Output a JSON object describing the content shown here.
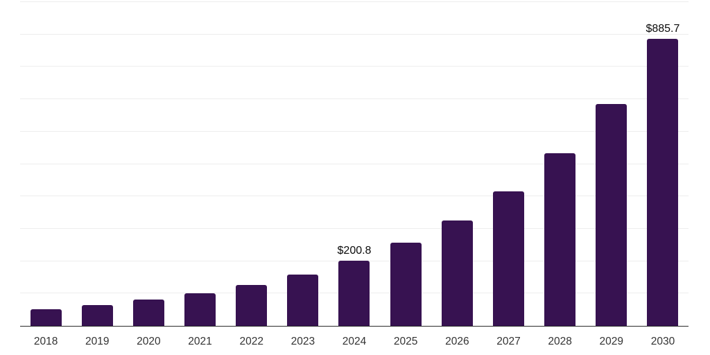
{
  "chart_data": {
    "type": "bar",
    "title": "",
    "xlabel": "",
    "ylabel": "",
    "categories": [
      "2018",
      "2019",
      "2020",
      "2021",
      "2022",
      "2023",
      "2024",
      "2025",
      "2026",
      "2027",
      "2028",
      "2029",
      "2030"
    ],
    "values": [
      51.5,
      64.3,
      80.8,
      101.4,
      127.1,
      159.3,
      200.8,
      256.5,
      325.0,
      416.0,
      533.0,
      686.0,
      885.7
    ],
    "data_labels": [
      "",
      "",
      "",
      "",
      "",
      "",
      "$200.8",
      "",
      "",
      "",
      "",
      "",
      "$885.7"
    ],
    "ylim": [
      0,
      1000
    ],
    "gridline_interval": 100,
    "grid": "horizontal",
    "legend": "none",
    "y_axis_tick_labels": "none",
    "colors": {
      "bar": "#371251",
      "gridline": "#ededed",
      "axis_line": "#2b2b2b",
      "tick_label": "#333333",
      "data_label": "#0a0a0a",
      "background": "#ffffff"
    }
  }
}
